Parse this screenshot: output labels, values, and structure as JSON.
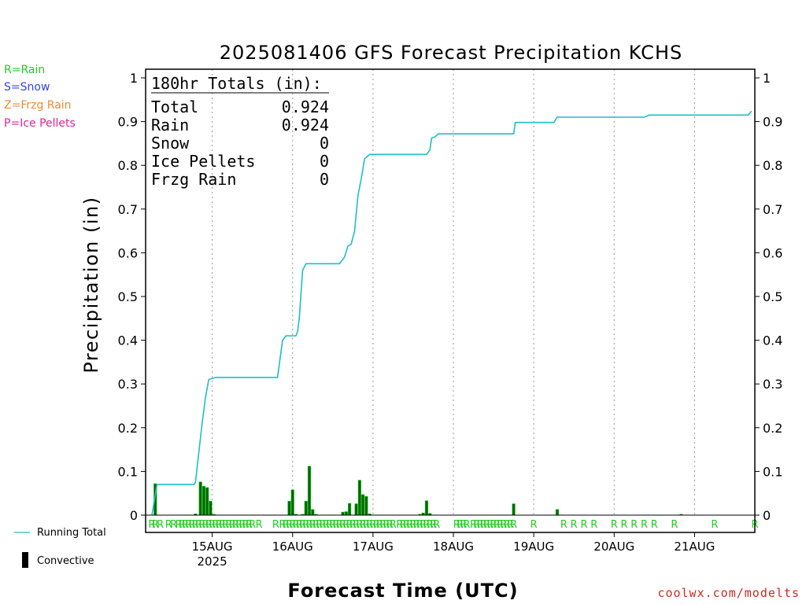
{
  "header": {
    "title": "2025081406 GFS Forecast Precipitation KCHS"
  },
  "precip_legend": [
    {
      "label": "R=Rain",
      "color": "#22cc22"
    },
    {
      "label": "S=Snow",
      "color": "#3344dd"
    },
    {
      "label": "Z=Frzg Rain",
      "color": "#ee8833"
    },
    {
      "label": "P=Ice Pellets",
      "color": "#dd2299"
    }
  ],
  "totals_box": {
    "heading": "180hr Totals (in):",
    "rows": [
      {
        "label": "Total",
        "value": "0.924"
      },
      {
        "label": "Rain",
        "value": "0.924"
      },
      {
        "label": "Snow",
        "value": "0"
      },
      {
        "label": "Ice Pellets",
        "value": "0"
      },
      {
        "label": "Frzg Rain",
        "value": "0"
      }
    ]
  },
  "key": {
    "running_total_label": "Running Total",
    "convective_label": "Convective",
    "running_total_color": "#1fbfbf",
    "bar_fill_color": "#006600",
    "bar_edge_color": "#22cc22",
    "ptype_color": "#22cc22"
  },
  "credit": "coolwx.com/modelts",
  "chart_data": {
    "type": "line",
    "xlabel": "Forecast Time (UTC)",
    "ylabel": "Precipitation (in)",
    "ylim": [
      0,
      1
    ],
    "yticks": [
      "0",
      "0.1",
      "0.2",
      "0.3",
      "0.4",
      "0.5",
      "0.6",
      "0.7",
      "0.8",
      "0.9",
      "1"
    ],
    "xlim_hours": [
      6,
      186
    ],
    "day_ticks": [
      {
        "hour": 24,
        "label": "15AUG",
        "sublabel": "2025"
      },
      {
        "hour": 48,
        "label": "16AUG",
        "sublabel": ""
      },
      {
        "hour": 72,
        "label": "17AUG",
        "sublabel": ""
      },
      {
        "hour": 96,
        "label": "18AUG",
        "sublabel": ""
      },
      {
        "hour": 120,
        "label": "19AUG",
        "sublabel": ""
      },
      {
        "hour": 144,
        "label": "20AUG",
        "sublabel": ""
      },
      {
        "hour": 168,
        "label": "21AUG",
        "sublabel": ""
      }
    ],
    "grid": "vertical-dotted-at-day-ticks",
    "running_total": {
      "name": "Running Total",
      "points": [
        [
          6,
          0
        ],
        [
          7.5,
          0.07
        ],
        [
          18.5,
          0.07
        ],
        [
          19,
          0.075
        ],
        [
          21,
          0.21
        ],
        [
          22,
          0.27
        ],
        [
          23,
          0.31
        ],
        [
          25,
          0.315
        ],
        [
          42.5,
          0.315
        ],
        [
          43.5,
          0.315
        ],
        [
          45,
          0.4
        ],
        [
          46,
          0.41
        ],
        [
          49,
          0.41
        ],
        [
          49.5,
          0.42
        ],
        [
          50,
          0.45
        ],
        [
          51,
          0.56
        ],
        [
          52,
          0.575
        ],
        [
          62,
          0.575
        ],
        [
          63.5,
          0.59
        ],
        [
          64.5,
          0.615
        ],
        [
          65.5,
          0.62
        ],
        [
          66.5,
          0.65
        ],
        [
          67.5,
          0.73
        ],
        [
          68.5,
          0.77
        ],
        [
          69.5,
          0.815
        ],
        [
          71,
          0.825
        ],
        [
          88,
          0.825
        ],
        [
          89,
          0.835
        ],
        [
          89.5,
          0.862
        ],
        [
          90.5,
          0.865
        ],
        [
          91.5,
          0.872
        ],
        [
          107,
          0.872
        ],
        [
          114,
          0.872
        ],
        [
          114.5,
          0.898
        ],
        [
          126,
          0.898
        ],
        [
          127,
          0.91
        ],
        [
          153,
          0.91
        ],
        [
          154.5,
          0.915
        ],
        [
          184,
          0.915
        ],
        [
          185,
          0.924
        ]
      ]
    },
    "interval_bars": {
      "name": "Convective",
      "points": [
        [
          7,
          0.072
        ],
        [
          19,
          0.003
        ],
        [
          20.5,
          0.076
        ],
        [
          21.5,
          0.066
        ],
        [
          22.5,
          0.063
        ],
        [
          23.5,
          0.032
        ],
        [
          24.5,
          0.002
        ],
        [
          47,
          0.032
        ],
        [
          48,
          0.058
        ],
        [
          49,
          0.002
        ],
        [
          51,
          0.002
        ],
        [
          52,
          0.032
        ],
        [
          53,
          0.112
        ],
        [
          54,
          0.013
        ],
        [
          55,
          0.002
        ],
        [
          63,
          0.007
        ],
        [
          64,
          0.008
        ],
        [
          65,
          0.027
        ],
        [
          67,
          0.026
        ],
        [
          68,
          0.08
        ],
        [
          69,
          0.047
        ],
        [
          70,
          0.043
        ],
        [
          71,
          0.003
        ],
        [
          86,
          0.002
        ],
        [
          87,
          0.005
        ],
        [
          88,
          0.033
        ],
        [
          89,
          0.004
        ],
        [
          114,
          0.026
        ],
        [
          127,
          0.013
        ],
        [
          164,
          0.002
        ]
      ]
    },
    "ptype_hours": [
      6,
      7,
      8.5,
      11,
      12.5,
      14,
      15,
      16,
      17,
      18,
      19,
      20,
      21,
      22,
      23,
      24,
      25,
      26,
      27,
      28,
      29,
      30,
      31,
      32,
      33,
      34,
      35,
      36,
      38,
      43,
      45,
      46,
      47,
      48,
      49,
      50,
      51,
      52,
      53,
      54,
      55,
      56,
      57,
      58,
      59,
      60,
      61,
      62,
      63,
      64,
      65,
      66,
      67,
      68,
      69,
      70,
      71,
      72,
      73,
      74,
      75,
      76,
      77,
      78,
      80,
      81,
      82,
      83,
      84,
      85,
      86,
      87,
      88,
      89,
      90,
      91,
      97,
      98,
      99,
      100,
      102,
      103,
      104,
      105,
      106,
      107,
      108,
      109,
      110,
      111,
      112,
      113,
      114,
      120,
      129,
      132,
      135,
      138,
      144,
      147,
      150,
      153,
      156,
      162,
      174,
      186
    ],
    "ptype_symbol": "R"
  }
}
